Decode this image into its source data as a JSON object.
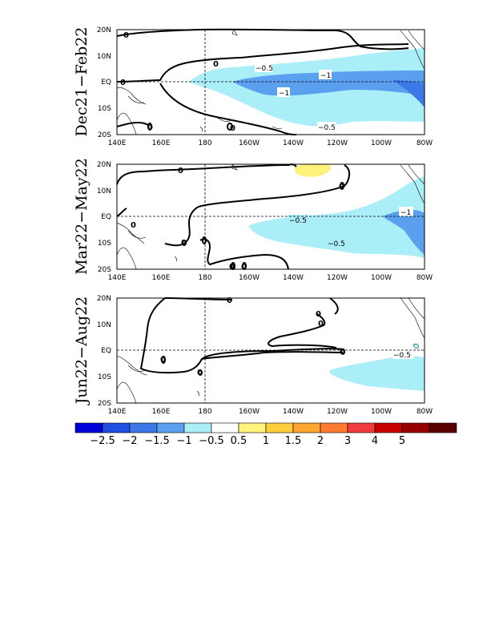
{
  "panels": [
    {
      "season": "Dec21−Feb22",
      "labels": {
        "neg05_a": "−0.5",
        "neg1_a": "−1",
        "neg1_b": "−1",
        "neg05_b": "−0.5",
        "zero": "0"
      }
    },
    {
      "season": "Mar22−May22",
      "labels": {
        "neg05_a": "−0.5",
        "neg05_b": "−0.5",
        "neg1_a": "−1",
        "zero": "0"
      }
    },
    {
      "season": "Jun22−Aug22",
      "labels": {
        "neg05_a": "−0.5",
        "zero": "0"
      }
    }
  ],
  "axes": {
    "lon_ticks": [
      "140E",
      "160E",
      "180",
      "160W",
      "140W",
      "120W",
      "100W",
      "80W"
    ],
    "lat_ticks": [
      "20N",
      "10N",
      "EQ",
      "10S",
      "20S"
    ]
  },
  "colorbar": {
    "colors": [
      "#0000d8",
      "#1f4fe0",
      "#3c78e6",
      "#5aa0ee",
      "#aaeef8",
      "#ffffff",
      "#fff27a",
      "#ffcd3c",
      "#ffa532",
      "#ff7b32",
      "#f03c3c",
      "#c80000",
      "#960000",
      "#5a0000"
    ],
    "labels": [
      "−2.5",
      "−2",
      "−1.5",
      "−1",
      "−0.5",
      "0.5",
      "1",
      "1.5",
      "2",
      "3",
      "4",
      "5"
    ]
  }
}
